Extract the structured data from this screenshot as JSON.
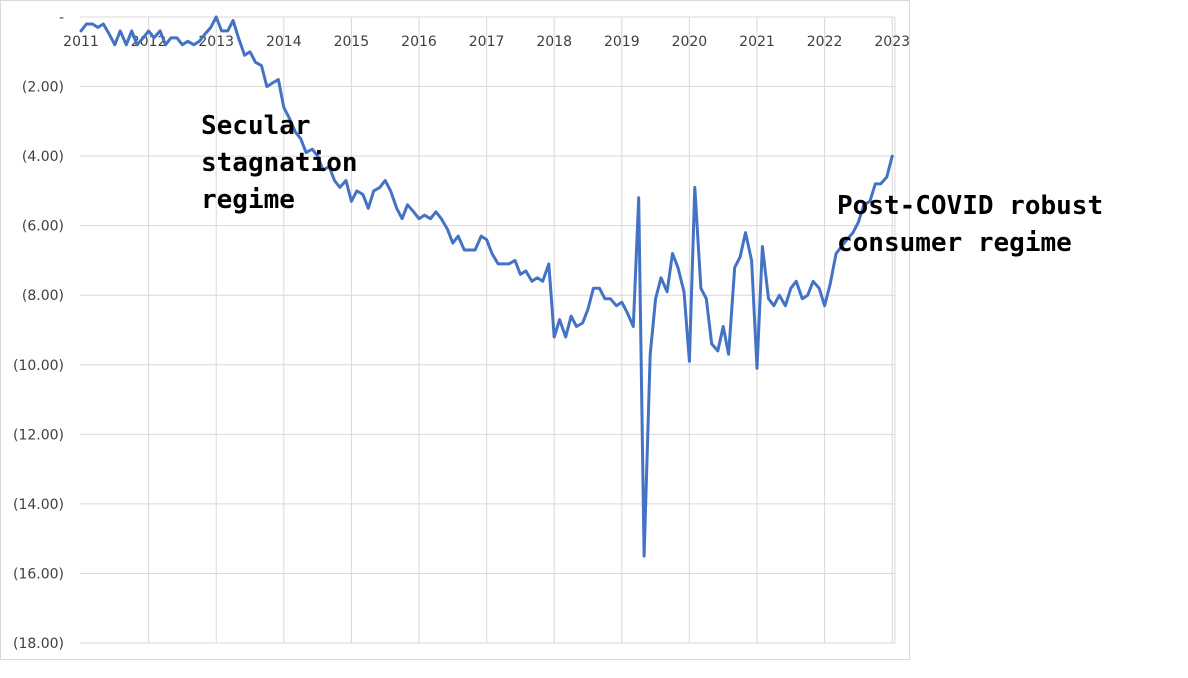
{
  "chart_data": {
    "type": "line",
    "title": "",
    "xlabel": "",
    "ylabel": "",
    "x_tick_labels": [
      "2011",
      "2012",
      "2013",
      "2014",
      "2015",
      "2016",
      "2017",
      "2018",
      "2019",
      "2020",
      "2021",
      "2022",
      "2023"
    ],
    "y_tick_labels": [
      "-",
      "(2.00)",
      "(4.00)",
      "(6.00)",
      "(8.00)",
      "(10.00)",
      "(12.00)",
      "(14.00)",
      "(16.00)",
      "(18.00)"
    ],
    "ylim": [
      -18,
      0
    ],
    "xlim": [
      2011.0,
      2023.2
    ],
    "grid": true,
    "series_color": "#4472C4",
    "series": [
      {
        "values": [
          [
            2011.0,
            -0.4
          ],
          [
            2011.08,
            -0.2
          ],
          [
            2011.17,
            -0.2
          ],
          [
            2011.25,
            -0.3
          ],
          [
            2011.33,
            -0.2
          ],
          [
            2011.42,
            -0.5
          ],
          [
            2011.5,
            -0.8
          ],
          [
            2011.58,
            -0.4
          ],
          [
            2011.67,
            -0.8
          ],
          [
            2011.75,
            -0.4
          ],
          [
            2011.83,
            -0.8
          ],
          [
            2011.92,
            -0.6
          ],
          [
            2012.0,
            -0.4
          ],
          [
            2012.08,
            -0.6
          ],
          [
            2012.17,
            -0.4
          ],
          [
            2012.25,
            -0.8
          ],
          [
            2012.33,
            -0.6
          ],
          [
            2012.42,
            -0.6
          ],
          [
            2012.5,
            -0.8
          ],
          [
            2012.58,
            -0.7
          ],
          [
            2012.67,
            -0.8
          ],
          [
            2012.75,
            -0.7
          ],
          [
            2012.83,
            -0.5
          ],
          [
            2012.92,
            -0.3
          ],
          [
            2013.0,
            0.0
          ],
          [
            2013.08,
            -0.4
          ],
          [
            2013.17,
            -0.4
          ],
          [
            2013.25,
            -0.1
          ],
          [
            2013.33,
            -0.6
          ],
          [
            2013.42,
            -1.1
          ],
          [
            2013.5,
            -1.0
          ],
          [
            2013.58,
            -1.3
          ],
          [
            2013.67,
            -1.4
          ],
          [
            2013.75,
            -2.0
          ],
          [
            2013.83,
            -1.9
          ],
          [
            2013.92,
            -1.8
          ],
          [
            2014.0,
            -2.6
          ],
          [
            2014.08,
            -2.9
          ],
          [
            2014.17,
            -3.3
          ],
          [
            2014.25,
            -3.5
          ],
          [
            2014.33,
            -3.9
          ],
          [
            2014.42,
            -3.8
          ],
          [
            2014.5,
            -4.0
          ],
          [
            2014.58,
            -4.4
          ],
          [
            2014.67,
            -4.3
          ],
          [
            2014.75,
            -4.7
          ],
          [
            2014.83,
            -4.9
          ],
          [
            2014.92,
            -4.7
          ],
          [
            2015.0,
            -5.3
          ],
          [
            2015.08,
            -5.0
          ],
          [
            2015.17,
            -5.1
          ],
          [
            2015.25,
            -5.5
          ],
          [
            2015.33,
            -5.0
          ],
          [
            2015.42,
            -4.9
          ],
          [
            2015.5,
            -4.7
          ],
          [
            2015.58,
            -5.0
          ],
          [
            2015.67,
            -5.5
          ],
          [
            2015.75,
            -5.8
          ],
          [
            2015.83,
            -5.4
          ],
          [
            2015.92,
            -5.6
          ],
          [
            2016.0,
            -5.8
          ],
          [
            2016.08,
            -5.7
          ],
          [
            2016.17,
            -5.8
          ],
          [
            2016.25,
            -5.6
          ],
          [
            2016.33,
            -5.8
          ],
          [
            2016.42,
            -6.1
          ],
          [
            2016.5,
            -6.5
          ],
          [
            2016.58,
            -6.3
          ],
          [
            2016.67,
            -6.7
          ],
          [
            2016.75,
            -6.7
          ],
          [
            2016.83,
            -6.7
          ],
          [
            2016.92,
            -6.3
          ],
          [
            2017.0,
            -6.4
          ],
          [
            2017.08,
            -6.8
          ],
          [
            2017.17,
            -7.1
          ],
          [
            2017.25,
            -7.1
          ],
          [
            2017.33,
            -7.1
          ],
          [
            2017.42,
            -7.0
          ],
          [
            2017.5,
            -7.4
          ],
          [
            2017.58,
            -7.3
          ],
          [
            2017.67,
            -7.6
          ],
          [
            2017.75,
            -7.5
          ],
          [
            2017.83,
            -7.6
          ],
          [
            2017.92,
            -7.1
          ],
          [
            2018.0,
            -9.2
          ],
          [
            2018.08,
            -8.7
          ],
          [
            2018.17,
            -9.2
          ],
          [
            2018.25,
            -8.6
          ],
          [
            2018.33,
            -8.9
          ],
          [
            2018.42,
            -8.8
          ],
          [
            2018.5,
            -8.4
          ],
          [
            2018.58,
            -7.8
          ],
          [
            2018.67,
            -7.8
          ],
          [
            2018.75,
            -8.1
          ],
          [
            2018.83,
            -8.1
          ],
          [
            2018.92,
            -8.3
          ],
          [
            2019.0,
            -8.2
          ],
          [
            2019.08,
            -8.5
          ],
          [
            2019.17,
            -8.9
          ],
          [
            2019.25,
            -5.2
          ],
          [
            2019.33,
            -15.5
          ],
          [
            2019.42,
            -9.7
          ],
          [
            2019.5,
            -8.1
          ],
          [
            2019.58,
            -7.5
          ],
          [
            2019.67,
            -7.9
          ],
          [
            2019.75,
            -6.8
          ],
          [
            2019.83,
            -7.2
          ],
          [
            2019.92,
            -7.9
          ],
          [
            2020.0,
            -9.9
          ],
          [
            2020.08,
            -4.9
          ],
          [
            2020.17,
            -7.8
          ],
          [
            2020.25,
            -8.1
          ],
          [
            2020.33,
            -9.4
          ],
          [
            2020.42,
            -9.6
          ],
          [
            2020.5,
            -8.9
          ],
          [
            2020.58,
            -9.7
          ],
          [
            2020.67,
            -7.2
          ],
          [
            2020.75,
            -6.9
          ],
          [
            2020.83,
            -6.2
          ],
          [
            2020.92,
            -7.0
          ],
          [
            2021.0,
            -10.1
          ],
          [
            2021.08,
            -6.6
          ],
          [
            2021.17,
            -8.1
          ],
          [
            2021.25,
            -8.3
          ],
          [
            2021.33,
            -8.0
          ],
          [
            2021.42,
            -8.3
          ],
          [
            2021.5,
            -7.8
          ],
          [
            2021.58,
            -7.6
          ],
          [
            2021.67,
            -8.1
          ],
          [
            2021.75,
            -8.0
          ],
          [
            2021.83,
            -7.6
          ],
          [
            2021.92,
            -7.8
          ],
          [
            2022.0,
            -8.3
          ],
          [
            2022.08,
            -7.7
          ],
          [
            2022.17,
            -6.8
          ],
          [
            2022.25,
            -6.6
          ],
          [
            2022.33,
            -6.4
          ],
          [
            2022.42,
            -6.2
          ],
          [
            2022.5,
            -5.9
          ],
          [
            2022.58,
            -5.4
          ],
          [
            2022.67,
            -5.3
          ],
          [
            2022.75,
            -4.8
          ],
          [
            2022.83,
            -4.8
          ],
          [
            2022.92,
            -4.6
          ],
          [
            2023.0,
            -4.0
          ]
        ]
      }
    ],
    "annotations": [
      {
        "lines": [
          "Secular",
          "stagnation",
          "regime"
        ]
      },
      {
        "lines": [
          "Post-COVID robust",
          "consumer regime"
        ]
      }
    ]
  }
}
